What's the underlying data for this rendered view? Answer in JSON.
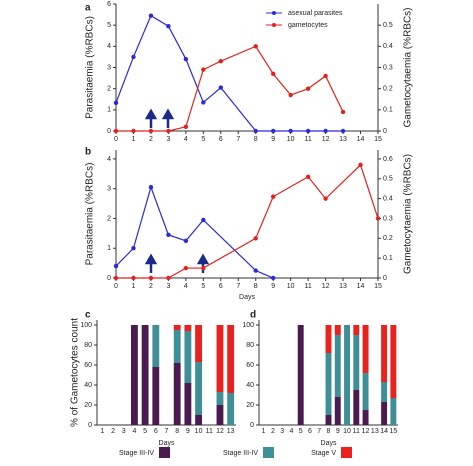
{
  "chart_data": [
    {
      "type": "line",
      "label": "a",
      "ylabel": "Parasitaemia (%RBCs)",
      "y2label": "Gametocytaemia (%RBCs)",
      "xlim": [
        0,
        15
      ],
      "xticks": [
        0,
        1,
        2,
        3,
        4,
        5,
        6,
        7,
        8,
        9,
        10,
        11,
        12,
        13,
        14,
        15
      ],
      "ylim": [
        0,
        6
      ],
      "yticks": [
        0,
        1,
        2,
        3,
        4,
        5,
        6
      ],
      "y2lim": [
        0,
        0.6
      ],
      "y2ticks": [
        0,
        0.1,
        0.2,
        0.3,
        0.4,
        0.5
      ],
      "series": [
        {
          "name": "asexual parasites",
          "color": "#2a2ad8",
          "x": [
            0,
            1,
            2,
            3,
            4,
            5,
            6,
            8,
            9,
            10,
            11,
            12,
            13
          ],
          "values": [
            1.33,
            3.5,
            5.45,
            4.95,
            3.4,
            1.35,
            2.05,
            0,
            0,
            0,
            0,
            0,
            0
          ]
        },
        {
          "name": "gametocytes",
          "color": "#e0231f",
          "axis": "y2",
          "x": [
            0,
            1,
            2,
            3,
            4,
            5,
            6,
            8,
            9,
            10,
            11,
            12,
            13
          ],
          "values": [
            0,
            0,
            0,
            0,
            0.02,
            0.29,
            0.33,
            0.4,
            0.27,
            0.17,
            0.2,
            0.26,
            0.09
          ]
        }
      ]
    },
    {
      "type": "line",
      "label": "b",
      "xlabel": "Days",
      "ylabel": "Parasitaemia (%RBCs)",
      "y2label": "Gametocytaemia (%RBCs)",
      "xlim": [
        0,
        15
      ],
      "xticks": [
        0,
        1,
        2,
        3,
        4,
        5,
        6,
        7,
        8,
        9,
        10,
        11,
        12,
        13,
        14,
        15
      ],
      "ylim": [
        0,
        4.3
      ],
      "yticks": [
        0,
        1,
        2,
        3,
        4
      ],
      "y2lim": [
        0,
        0.645
      ],
      "y2ticks": [
        0,
        0.1,
        0.2,
        0.3,
        0.4,
        0.5,
        0.6
      ],
      "series": [
        {
          "color": "#2a2ad8",
          "x": [
            0,
            1,
            2,
            3,
            4,
            5,
            8,
            9
          ],
          "values": [
            0.4,
            1.0,
            3.05,
            1.45,
            1.25,
            1.95,
            0.25,
            0
          ]
        },
        {
          "color": "#e0231f",
          "axis": "y2",
          "x": [
            0,
            1,
            2,
            3,
            4,
            5,
            8,
            9,
            11,
            12,
            14,
            15
          ],
          "values": [
            0,
            0,
            0,
            0,
            0.05,
            0.05,
            0.2,
            0.41,
            0.51,
            0.4,
            0.57,
            0.3
          ]
        }
      ]
    },
    {
      "type": "bar",
      "label": "c",
      "xlabel": "Days",
      "ylabel": "% of  Gametocytes count",
      "categories": [
        "1",
        "2",
        "3",
        "4",
        "5",
        "6",
        "7",
        "8",
        "9",
        "10",
        "11",
        "12",
        "13"
      ],
      "ylim": [
        0,
        105
      ],
      "yticks": [
        0,
        20,
        40,
        60,
        80,
        100
      ],
      "series": [
        {
          "name": "Stage III-IV",
          "color": "#4a1a50",
          "values": [
            0,
            0,
            0,
            100,
            100,
            58,
            0,
            62,
            42,
            10,
            0,
            20,
            0
          ]
        },
        {
          "name": "Stage III-IV",
          "color": "#3f8f97",
          "values": [
            0,
            0,
            0,
            0,
            0,
            42,
            0,
            33,
            52,
            53,
            0,
            13,
            32
          ]
        },
        {
          "name": "Stage V",
          "color": "#e8221f",
          "values": [
            0,
            0,
            0,
            0,
            0,
            0,
            0,
            5,
            6,
            37,
            0,
            67,
            68
          ]
        }
      ]
    },
    {
      "type": "bar",
      "label": "d",
      "xlabel": "Days",
      "categories": [
        "1",
        "2",
        "3",
        "4",
        "5",
        "6",
        "7",
        "8",
        "9",
        "10",
        "11",
        "12",
        "13",
        "14",
        "15"
      ],
      "ylim": [
        0,
        105
      ],
      "yticks": [
        0,
        20,
        40,
        60,
        80,
        100
      ],
      "series": [
        {
          "color": "#4a1a50",
          "values": [
            0,
            0,
            0,
            0,
            100,
            0,
            0,
            10,
            28,
            0,
            35,
            15,
            0,
            23,
            0
          ]
        },
        {
          "color": "#3f8f97",
          "values": [
            0,
            0,
            0,
            0,
            0,
            0,
            0,
            62,
            62,
            100,
            55,
            37,
            0,
            20,
            27
          ]
        },
        {
          "color": "#e8221f",
          "values": [
            0,
            0,
            0,
            0,
            0,
            0,
            0,
            28,
            10,
            0,
            10,
            48,
            0,
            57,
            73
          ]
        }
      ]
    }
  ]
}
